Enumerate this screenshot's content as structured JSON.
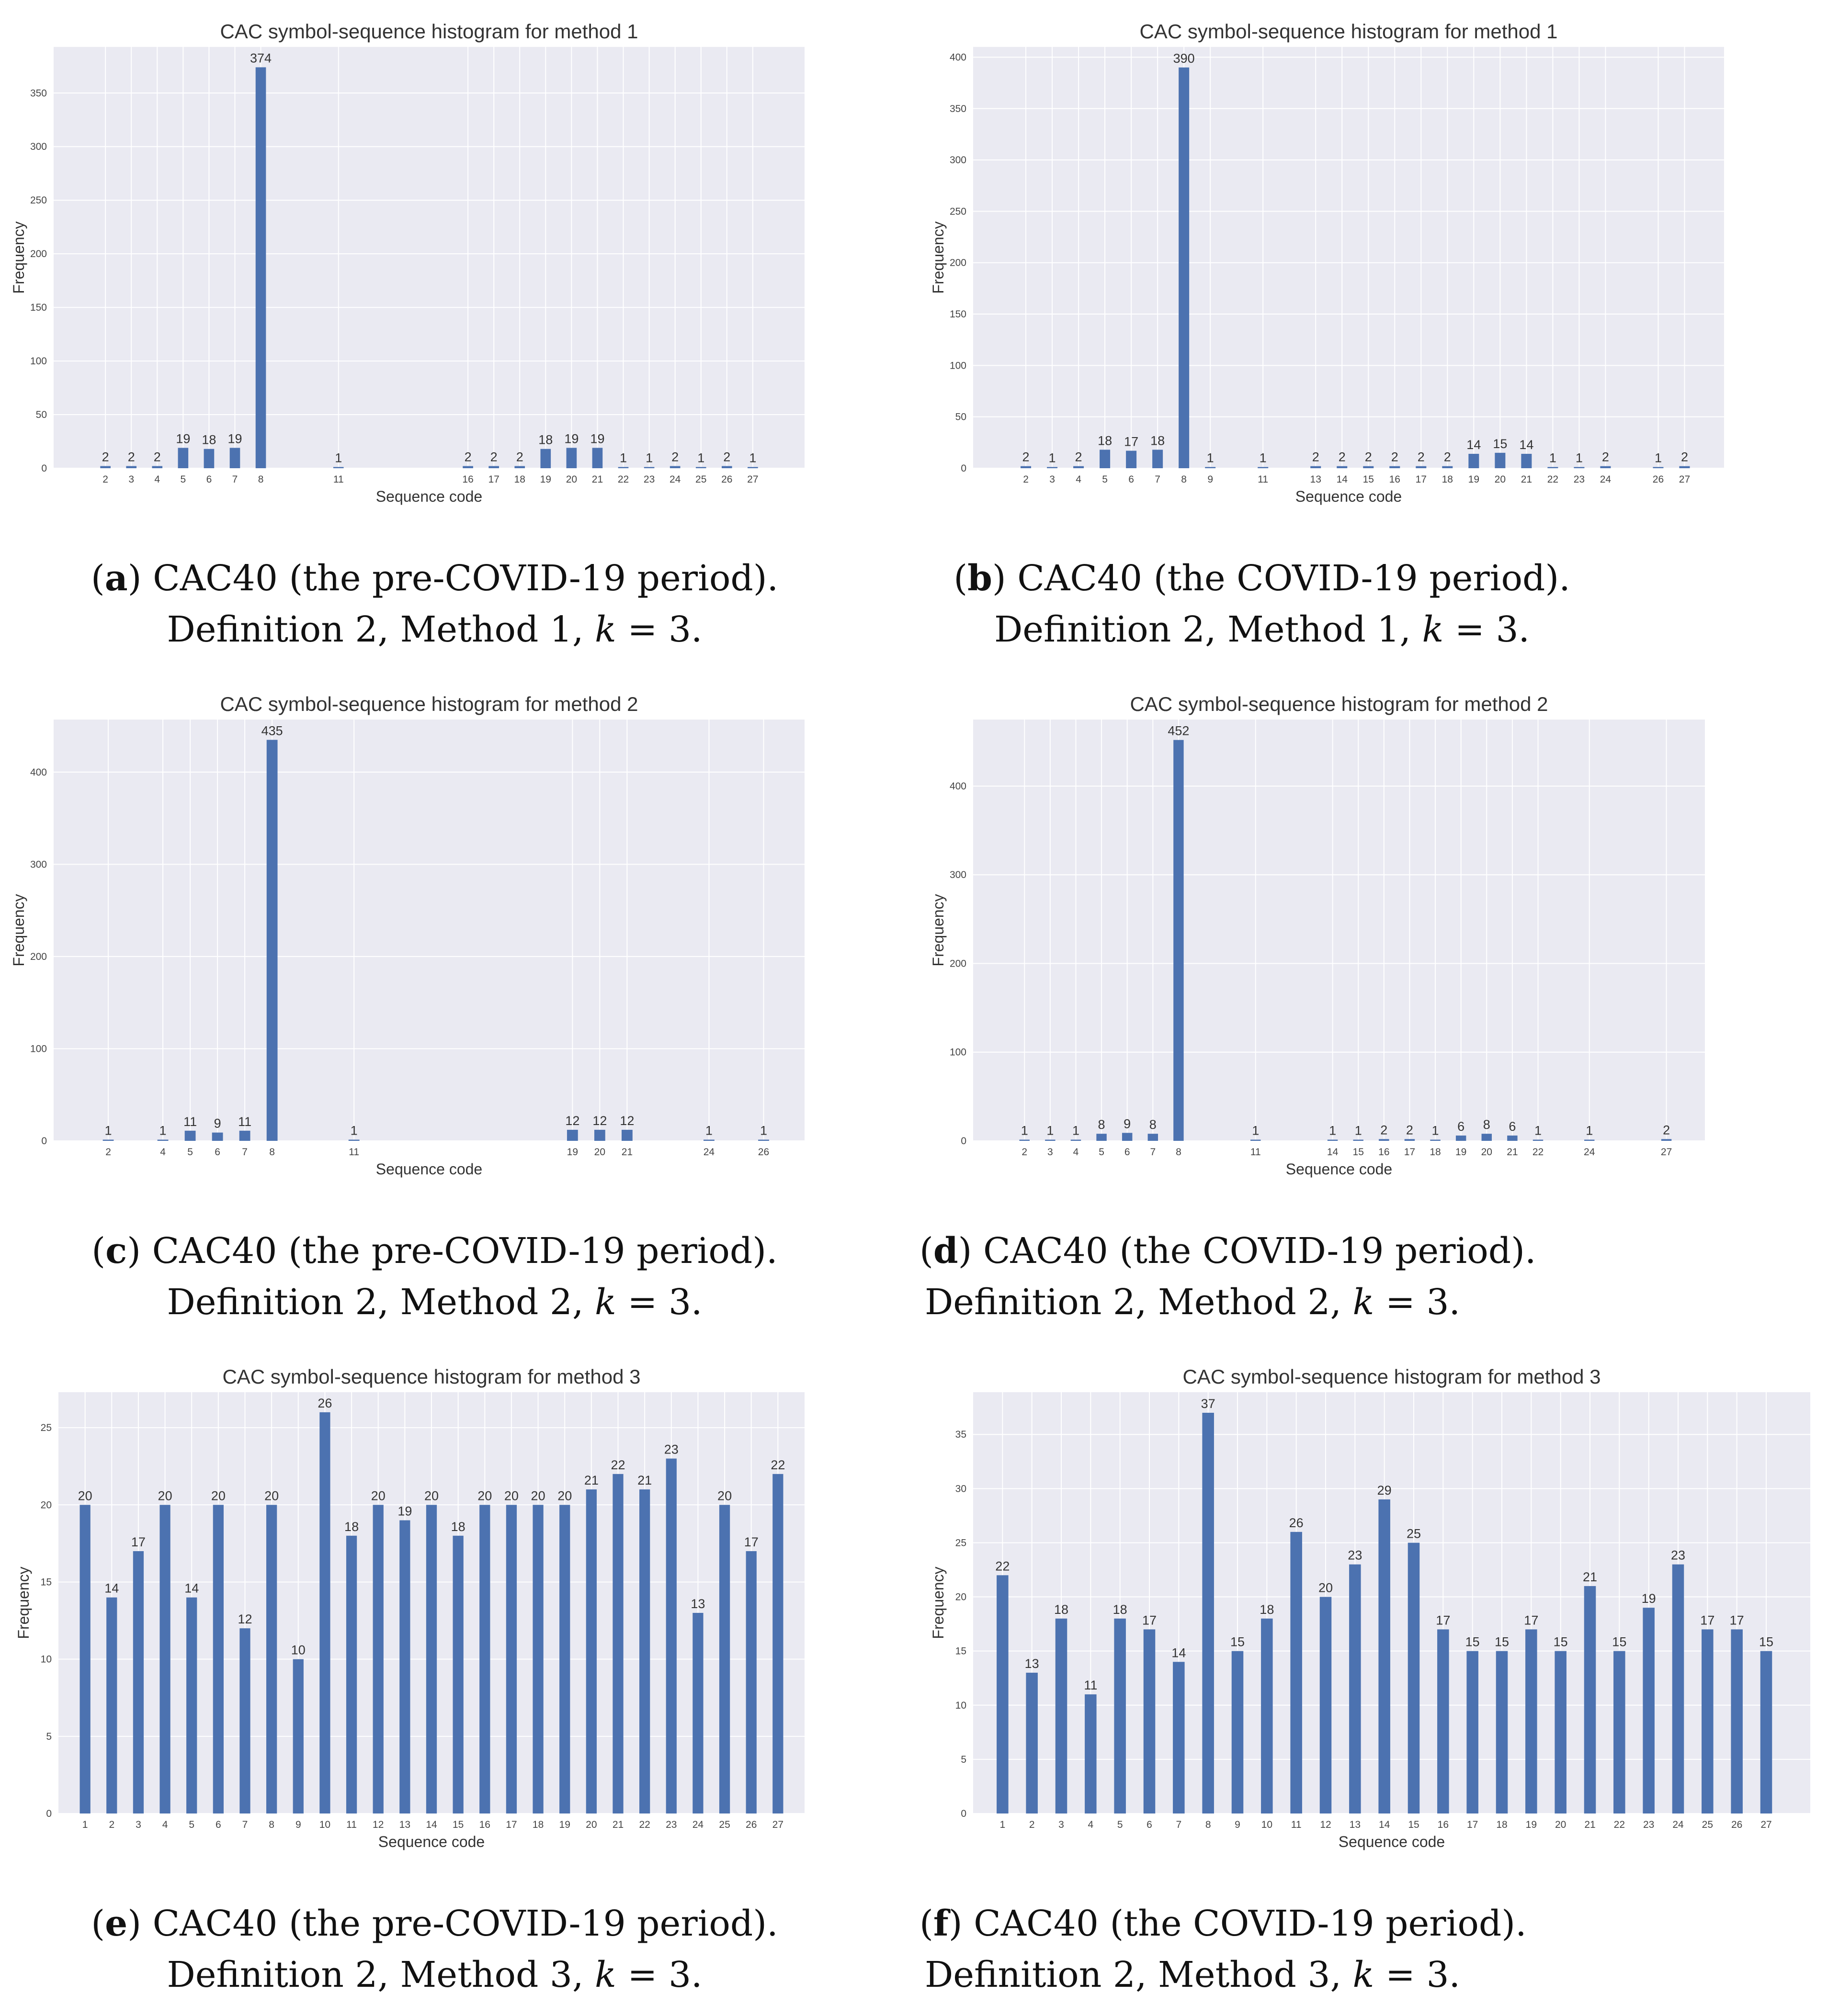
{
  "colors": {
    "bar": "#4c72b0",
    "plot_bg": "#eaeaf2",
    "grid": "#ffffff"
  },
  "chart_data": [
    {
      "id": "a",
      "type": "bar",
      "title": "CAC symbol-sequence histogram for method 1",
      "xlabel": "Sequence code",
      "ylabel": "Frequency",
      "categories": [
        2,
        3,
        4,
        5,
        6,
        7,
        8,
        11,
        16,
        17,
        18,
        19,
        20,
        21,
        22,
        23,
        24,
        25,
        26,
        27
      ],
      "values": [
        2,
        2,
        2,
        19,
        18,
        19,
        374,
        1,
        2,
        2,
        2,
        18,
        19,
        19,
        1,
        1,
        2,
        1,
        2,
        1
      ],
      "xlim": [
        0,
        29
      ],
      "ylim": [
        0,
        393
      ],
      "yticks": [
        0,
        50,
        100,
        150,
        200,
        250,
        300,
        350
      ],
      "caption": {
        "letter": "a",
        "line1_rest": ") CAC40 (the pre-COVID-19 period).",
        "line2_pre": "Definition 2, Method 1, ",
        "k": "k",
        "line2_post": " = 3."
      }
    },
    {
      "id": "b",
      "type": "bar",
      "title": "CAC symbol-sequence histogram for method 1",
      "xlabel": "Sequence code",
      "ylabel": "Frequency",
      "categories": [
        2,
        3,
        4,
        5,
        6,
        7,
        8,
        9,
        11,
        13,
        14,
        15,
        16,
        17,
        18,
        19,
        20,
        21,
        22,
        23,
        24,
        26,
        27
      ],
      "values": [
        2,
        1,
        2,
        18,
        17,
        18,
        390,
        1,
        1,
        2,
        2,
        2,
        2,
        2,
        2,
        14,
        15,
        14,
        1,
        1,
        2,
        1,
        2
      ],
      "xlim": [
        0,
        28.5
      ],
      "ylim": [
        0,
        410
      ],
      "yticks": [
        0,
        50,
        100,
        150,
        200,
        250,
        300,
        350,
        400
      ],
      "caption": {
        "letter": "b",
        "line1_rest": ") CAC40 (the COVID-19 period).",
        "line2_pre": "Definition 2, Method 1, ",
        "k": "k",
        "line2_post": " = 3."
      }
    },
    {
      "id": "c",
      "type": "bar",
      "title": "CAC symbol-sequence histogram for method 2",
      "xlabel": "Sequence code",
      "ylabel": "Frequency",
      "categories": [
        2,
        4,
        5,
        6,
        7,
        8,
        11,
        19,
        20,
        21,
        24,
        26
      ],
      "values": [
        1,
        1,
        11,
        9,
        11,
        435,
        1,
        12,
        12,
        12,
        1,
        1
      ],
      "xlim": [
        0,
        27.5
      ],
      "ylim": [
        0,
        457
      ],
      "yticks": [
        0,
        100,
        200,
        300,
        400
      ],
      "caption": {
        "letter": "c",
        "line1_rest": ") CAC40 (the pre-COVID-19 period).",
        "line2_pre": "Definition 2, Method 2, ",
        "k": "k",
        "line2_post": " = 3."
      }
    },
    {
      "id": "d",
      "type": "bar",
      "title": "CAC symbol-sequence histogram for method 2",
      "xlabel": "Sequence code",
      "ylabel": "Frequency",
      "categories": [
        2,
        3,
        4,
        5,
        6,
        7,
        8,
        11,
        14,
        15,
        16,
        17,
        18,
        19,
        20,
        21,
        22,
        24,
        27
      ],
      "values": [
        1,
        1,
        1,
        8,
        9,
        8,
        452,
        1,
        1,
        1,
        2,
        2,
        1,
        6,
        8,
        6,
        1,
        1,
        2
      ],
      "xlim": [
        0,
        28.5
      ],
      "ylim": [
        0,
        475
      ],
      "yticks": [
        0,
        100,
        200,
        300,
        400
      ],
      "caption": {
        "letter": "d",
        "line1_rest": ") CAC40 (the COVID-19 period).",
        "line2_pre": "Definition 2, Method 2, ",
        "k": "k",
        "line2_post": " = 3."
      }
    },
    {
      "id": "e",
      "type": "bar",
      "title": "CAC symbol-sequence histogram for method 3",
      "xlabel": "Sequence code",
      "ylabel": "Frequency",
      "categories": [
        1,
        2,
        3,
        4,
        5,
        6,
        7,
        8,
        9,
        10,
        11,
        12,
        13,
        14,
        15,
        16,
        17,
        18,
        19,
        20,
        21,
        22,
        23,
        24,
        25,
        26,
        27
      ],
      "values": [
        20,
        14,
        17,
        20,
        14,
        20,
        12,
        20,
        10,
        26,
        18,
        20,
        19,
        20,
        18,
        20,
        20,
        20,
        20,
        21,
        22,
        21,
        23,
        13,
        20,
        17,
        22
      ],
      "xlim": [
        0,
        28
      ],
      "ylim": [
        0,
        27.3
      ],
      "yticks": [
        0,
        5,
        10,
        15,
        20,
        25
      ],
      "caption": {
        "letter": "e",
        "line1_rest": ") CAC40 (the pre-COVID-19 period).",
        "line2_pre": "Definition 2, Method 3, ",
        "k": "k",
        "line2_post": " = 3."
      }
    },
    {
      "id": "f",
      "type": "bar",
      "title": "CAC symbol-sequence histogram for method 3",
      "xlabel": "Sequence code",
      "ylabel": "Frequency",
      "categories": [
        1,
        2,
        3,
        4,
        5,
        6,
        7,
        8,
        9,
        10,
        11,
        12,
        13,
        14,
        15,
        16,
        17,
        18,
        19,
        20,
        21,
        22,
        23,
        24,
        25,
        26,
        27
      ],
      "values": [
        22,
        13,
        18,
        11,
        18,
        17,
        14,
        37,
        15,
        18,
        26,
        20,
        23,
        29,
        25,
        17,
        15,
        15,
        17,
        15,
        21,
        15,
        19,
        23,
        17,
        17,
        15
      ],
      "xlim": [
        0,
        28.5
      ],
      "ylim": [
        0,
        38.9
      ],
      "yticks": [
        0,
        5,
        10,
        15,
        20,
        25,
        30,
        35
      ],
      "caption": {
        "letter": "f",
        "line1_rest": ") CAC40 (the COVID-19 period).",
        "line2_pre": "Definition 2, Method 3, ",
        "k": "k",
        "line2_post": " = 3."
      }
    }
  ]
}
